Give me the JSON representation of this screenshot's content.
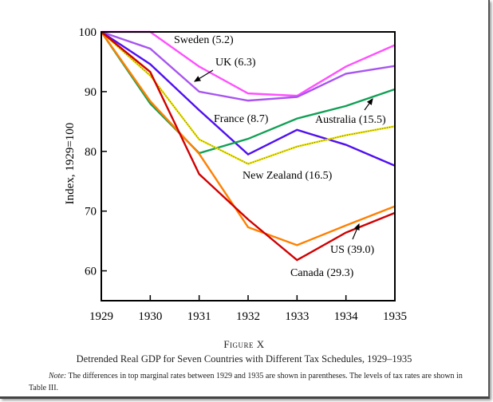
{
  "figure": {
    "number": "Figure X",
    "title": "Detrended Real GDP for Seven Countries with Different Tax Schedules, 1929–1935",
    "note_label": "Note:",
    "note_text": "The differences in top marginal rates between 1929 and 1935 are shown in parentheses. The levels of tax rates are shown in Table III."
  },
  "chart_data": {
    "type": "line",
    "title": "",
    "xlabel": "",
    "ylabel": "Index, 1929=100",
    "x": [
      1929,
      1930,
      1931,
      1932,
      1933,
      1934,
      1935
    ],
    "xticks": [
      "1929",
      "1930",
      "1931",
      "1932",
      "1933",
      "1934",
      "1935"
    ],
    "yticks": [
      "60",
      "70",
      "80",
      "90",
      "100"
    ],
    "ylim": [
      55,
      100
    ],
    "xlim": [
      1929,
      1935
    ],
    "grid": false,
    "legend": "none (inline labels)",
    "series": [
      {
        "name": "Sweden",
        "label": "Sweden (5.2)",
        "color": "#ff50ff",
        "values": [
          100,
          100,
          94.2,
          89.7,
          89.3,
          94.2,
          97.8
        ]
      },
      {
        "name": "UK",
        "label": "UK (6.3)",
        "color": "#a855f0",
        "values": [
          100,
          97.2,
          90.0,
          88.5,
          89.1,
          93.0,
          94.3
        ]
      },
      {
        "name": "France",
        "label": "France (8.7)",
        "color": "#5010f0",
        "values": [
          100,
          94.6,
          86.9,
          79.5,
          83.6,
          81.1,
          77.6
        ]
      },
      {
        "name": "Australia",
        "label": "Australia (15.5)",
        "color": "#10a055",
        "values": [
          100,
          88.0,
          79.7,
          82.1,
          85.5,
          87.6,
          90.4
        ]
      },
      {
        "name": "New Zealand",
        "label": "New Zealand (16.5)",
        "color": "#e8e000",
        "values": [
          100,
          92.7,
          82.0,
          77.9,
          80.8,
          82.7,
          84.2
        ]
      },
      {
        "name": "US",
        "label": "US (39.0)",
        "color": "#ff8000",
        "values": [
          100,
          88.4,
          79.6,
          67.3,
          64.3,
          67.6,
          70.8
        ]
      },
      {
        "name": "Canada",
        "label": "Canada (29.3)",
        "color": "#d00000",
        "values": [
          100,
          93.3,
          76.2,
          68.6,
          61.8,
          66.4,
          69.7
        ]
      }
    ]
  }
}
